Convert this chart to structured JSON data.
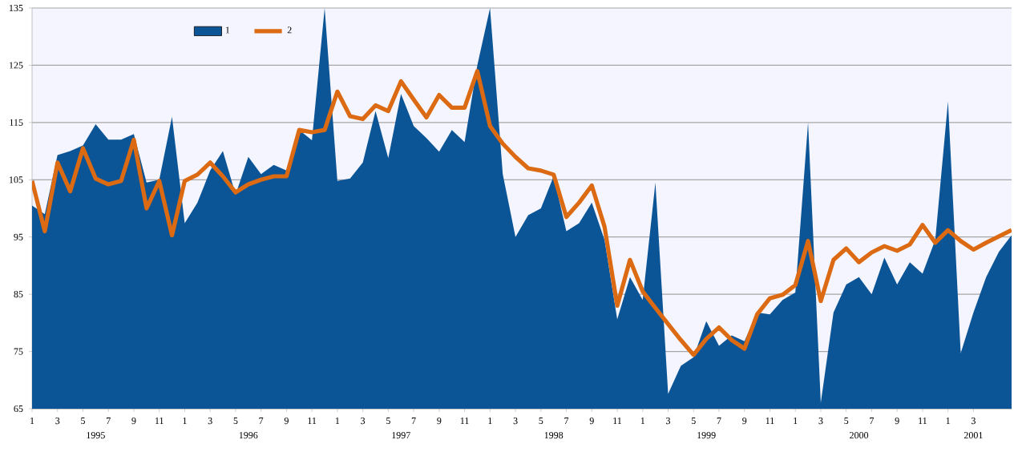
{
  "chart_data": {
    "type": "line",
    "x": [
      "1995-01",
      "1995-02",
      "1995-03",
      "1995-04",
      "1995-05",
      "1995-06",
      "1995-07",
      "1995-08",
      "1995-09",
      "1995-10",
      "1995-11",
      "1995-12",
      "1996-01",
      "1996-02",
      "1996-03",
      "1996-04",
      "1996-05",
      "1996-06",
      "1996-07",
      "1996-08",
      "1996-09",
      "1996-10",
      "1996-11",
      "1996-12",
      "1997-01",
      "1997-02",
      "1997-03",
      "1997-04",
      "1997-05",
      "1997-06",
      "1997-07",
      "1997-08",
      "1997-09",
      "1997-10",
      "1997-11",
      "1997-12",
      "1998-01",
      "1998-02",
      "1998-03",
      "1998-04",
      "1998-05",
      "1998-06",
      "1998-07",
      "1998-08",
      "1998-09",
      "1998-10",
      "1998-11",
      "1998-12",
      "1999-01",
      "1999-02",
      "1999-03",
      "1999-04",
      "1999-05",
      "1999-06",
      "1999-07",
      "1999-08",
      "1999-09",
      "1999-10",
      "1999-11",
      "1999-12",
      "2000-01",
      "2000-02",
      "2000-03",
      "2000-04",
      "2000-05",
      "2000-06",
      "2000-07",
      "2000-08",
      "2000-09",
      "2000-10",
      "2000-11",
      "2000-12",
      "2001-01",
      "2001-02",
      "2001-03",
      "2001-04",
      "2001-05",
      "2001-06"
    ],
    "series": [
      {
        "name": "1",
        "type": "area",
        "color": "#0b5596",
        "values": [
          100.5,
          99,
          109.3,
          110,
          111,
          114.7,
          112,
          112,
          113,
          104.5,
          105,
          116,
          97.4,
          101,
          106.6,
          110,
          102.4,
          109,
          106,
          107.6,
          106.6,
          113.7,
          111.9,
          135,
          104.8,
          105.2,
          108,
          117,
          108.8,
          120,
          114.4,
          112.3,
          109.9,
          113.7,
          111.6,
          125,
          135,
          106,
          95,
          98.8,
          100,
          105.6,
          96,
          97.4,
          101,
          94.5,
          80.6,
          88,
          84,
          104.5,
          67.6,
          72.5,
          74,
          80.3,
          76,
          77.8,
          76.8,
          81.8,
          81.5,
          84,
          85.3,
          115,
          66,
          81.8,
          86.7,
          88,
          85,
          91.4,
          86.7,
          90.6,
          88.6,
          94.5,
          118.7,
          74.7,
          81.8,
          88,
          92.4,
          95.3
        ]
      },
      {
        "name": "2",
        "color": "#dc6a12",
        "values": [
          104.8,
          96,
          108,
          103,
          110.5,
          105.2,
          104.2,
          104.8,
          112,
          100,
          104.8,
          95.3,
          104.8,
          105.9,
          108,
          105.6,
          102.8,
          104.2,
          105,
          105.6,
          105.6,
          113.7,
          113.3,
          113.7,
          120.4,
          116.1,
          115.6,
          118,
          117,
          122.2,
          119,
          115.9,
          119.8,
          117.6,
          117.6,
          124,
          114.4,
          111.3,
          109,
          107,
          106.6,
          105.9,
          98.5,
          101,
          104,
          96.8,
          83,
          91,
          85.5,
          82.6,
          79.8,
          77,
          74.4,
          77.2,
          79.2,
          77,
          75.5,
          81.5,
          84.3,
          84.9,
          86.6,
          94.3,
          83.8,
          91,
          93,
          90.6,
          92.3,
          93.4,
          92.6,
          93.7,
          97.1,
          94,
          96.2,
          94.3,
          92.8,
          94,
          95.1,
          96.2
        ]
      }
    ],
    "xlim": [
      "1995-01",
      "2001-06"
    ],
    "xticks": [
      {
        "value": "1995-01",
        "label": "1"
      },
      {
        "value": "1995-03",
        "label": "3"
      },
      {
        "value": "1995-05",
        "label": "5"
      },
      {
        "value": "1995-07",
        "label": "7"
      },
      {
        "value": "1995-09",
        "label": "9"
      },
      {
        "value": "1995-11",
        "label": "11"
      },
      {
        "value": "1996-01",
        "label": "1"
      },
      {
        "value": "1996-03",
        "label": "3"
      },
      {
        "value": "1996-05",
        "label": "5"
      },
      {
        "value": "1996-07",
        "label": "7"
      },
      {
        "value": "1996-09",
        "label": "9"
      },
      {
        "value": "1996-11",
        "label": "11"
      },
      {
        "value": "1997-01",
        "label": "1"
      },
      {
        "value": "1997-03",
        "label": "3"
      },
      {
        "value": "1997-05",
        "label": "5"
      },
      {
        "value": "1997-07",
        "label": "7"
      },
      {
        "value": "1997-09",
        "label": "9"
      },
      {
        "value": "1997-11",
        "label": "11"
      },
      {
        "value": "1998-01",
        "label": "1"
      },
      {
        "value": "1998-03",
        "label": "3"
      },
      {
        "value": "1998-05",
        "label": "5"
      },
      {
        "value": "1998-07",
        "label": "7"
      },
      {
        "value": "1998-09",
        "label": "9"
      },
      {
        "value": "1998-11",
        "label": "11"
      },
      {
        "value": "1999-01",
        "label": "1"
      },
      {
        "value": "1999-03",
        "label": "3"
      },
      {
        "value": "1999-05",
        "label": "5"
      },
      {
        "value": "1999-07",
        "label": "7"
      },
      {
        "value": "1999-09",
        "label": "9"
      },
      {
        "value": "1999-11",
        "label": "11"
      },
      {
        "value": "2000-01",
        "label": "1"
      },
      {
        "value": "2000-03",
        "label": "3"
      },
      {
        "value": "2000-05",
        "label": "5"
      },
      {
        "value": "2000-07",
        "label": "7"
      },
      {
        "value": "2000-09",
        "label": "9"
      },
      {
        "value": "2000-11",
        "label": "11"
      },
      {
        "value": "2001-01",
        "label": "1"
      },
      {
        "value": "2001-03",
        "label": "3"
      }
    ],
    "x2lim": [
      "1995-01",
      "2001-06"
    ],
    "x2ticks": [
      {
        "value": "1995-06",
        "label": "1995"
      },
      {
        "value": "1996-06",
        "label": "1996"
      },
      {
        "value": "1997-06",
        "label": "1997"
      },
      {
        "value": "1998-06",
        "label": "1998"
      },
      {
        "value": "1999-06",
        "label": "1999"
      },
      {
        "value": "2000-06",
        "label": "2000"
      },
      {
        "value": "2001-03",
        "label": "2001"
      }
    ],
    "ylim": [
      65,
      135
    ],
    "yticks": [
      65,
      75,
      85,
      95,
      105,
      115,
      125,
      135
    ],
    "grid": "y",
    "legend": "top left"
  }
}
